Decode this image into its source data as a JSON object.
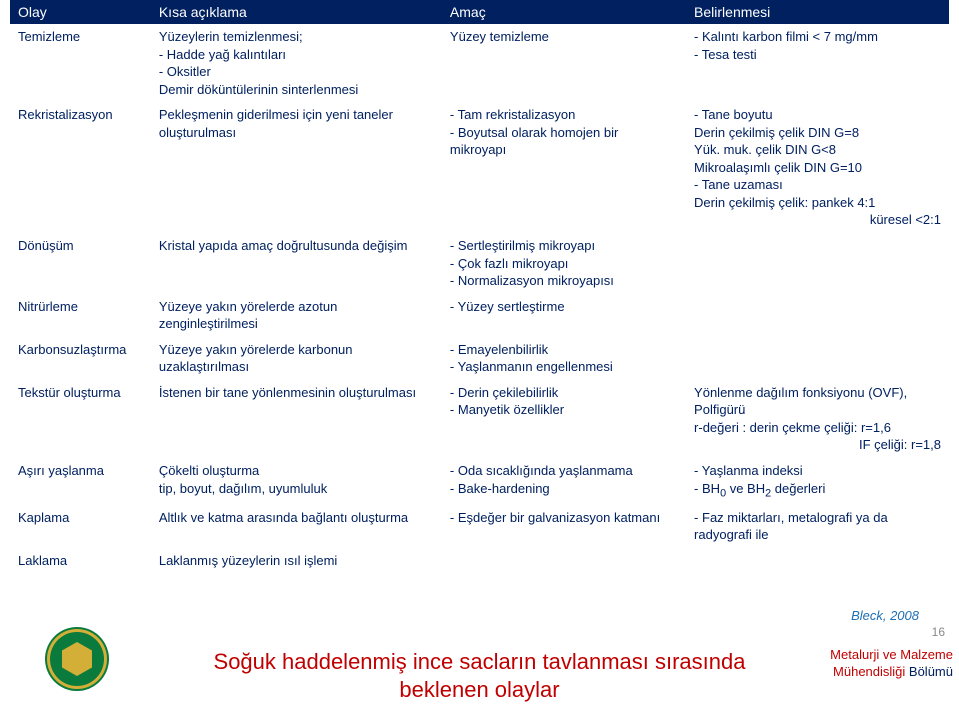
{
  "colors": {
    "header_bg": "#002060",
    "header_fg": "#ffffff",
    "body_text": "#002060",
    "title_red": "#c00000",
    "citation_blue": "#1f6fb4",
    "pagenum_gray": "#888888",
    "logo_green": "#0a7a3d",
    "logo_gold": "#d4af37"
  },
  "typography": {
    "body_size_pt": 10,
    "header_size_pt": 10.5,
    "title_size_pt": 16,
    "font_family": "Arial"
  },
  "table": {
    "headers": [
      "Olay",
      "Kısa açıklama",
      "Amaç",
      "Belirlenmesi"
    ],
    "rows": [
      {
        "c0": "Temizleme",
        "c1_lead": "Yüzeylerin temizlenmesi;",
        "c1_items": [
          "Hadde yağ kalıntıları",
          "Oksitler"
        ],
        "c1_tail": "Demir döküntülerinin sinterlenmesi",
        "c2_plain": "Yüzey temizleme",
        "c3_items": [
          "Kalıntı karbon filmi < 7 mg/mm",
          "Tesa testi"
        ]
      },
      {
        "c0": "Rekristalizasyon",
        "c1_plain": "Pekleşmenin giderilmesi için yeni taneler oluşturulması",
        "c2_items": [
          "Tam rekristalizasyon",
          "Boyutsal olarak homojen bir mikroyapı"
        ],
        "c3_mixed": [
          {
            "type": "dash",
            "text": "Tane boyutu"
          },
          {
            "type": "plain",
            "text": "Derin çekilmiş çelik DIN G=8"
          },
          {
            "type": "plain",
            "text": "Yük. muk. çelik DIN G<8"
          },
          {
            "type": "plain",
            "text": "Mikroalaşımlı çelik DIN G=10"
          },
          {
            "type": "dash",
            "text": "Tane uzaması"
          },
          {
            "type": "plain",
            "text": "Derin çekilmiş çelik: pankek 4:1"
          },
          {
            "type": "indent",
            "text": "küresel <2:1"
          }
        ]
      },
      {
        "c0": "Dönüşüm",
        "c1_plain": "Kristal yapıda amaç doğrultusunda değişim",
        "c2_items": [
          "Sertleştirilmiş mikroyapı",
          "Çok fazlı mikroyapı",
          "Normalizasyon mikroyapısı"
        ]
      },
      {
        "c0": "Nitrürleme",
        "c1_plain": "Yüzeye yakın yörelerde azotun zenginleştirilmesi",
        "c2_items": [
          "Yüzey sertleştirme"
        ]
      },
      {
        "c0": "Karbonsuzlaştırma",
        "c1_plain": "Yüzeye yakın yörelerde karbonun uzaklaştırılması",
        "c2_items": [
          "Emayelenbilirlik",
          "Yaşlanmanın engellenmesi"
        ]
      },
      {
        "c0": "Tekstür oluşturma",
        "c1_plain": "İstenen bir tane yönlenmesinin oluşturulması",
        "c2_items": [
          "Derin çekilebilirlik",
          "Manyetik özellikler"
        ],
        "c3_lines": [
          "Yönlenme dağılım fonksiyonu (OVF),",
          "Polfigürü",
          "r-değeri : derin çekme çeliği: r=1,6"
        ],
        "c3_indent": "IF çeliği: r=1,8"
      },
      {
        "c0": "Aşırı yaşlanma",
        "c1_lead": "Çökelti oluşturma",
        "c1_tail": "tip, boyut, dağılım, uyumluluk",
        "c2_items": [
          "Oda sıcaklığında yaşlanmama",
          "Bake-hardening"
        ],
        "c3_items_html": [
          "Yaşlanma indeksi",
          "BH<sub>0</sub> ve BH<sub>2</sub> değerleri"
        ]
      },
      {
        "c0": "Kaplama",
        "c1_plain": "Altlık ve katma arasında bağlantı oluşturma",
        "c2_items": [
          "Eşdeğer bir galvanizasyon katmanı"
        ],
        "c3_items": [
          "Faz miktarları, metalografi ya da radyografi ile"
        ]
      },
      {
        "c0": "Laklama",
        "c1_plain": "Laklanmış yüzeylerin ısıl işlemi"
      }
    ]
  },
  "footer": {
    "citation": "Bleck, 2008",
    "page_number": "16",
    "title_line1": "Soğuk haddelenmiş ince sacların tavlanması sırasında",
    "title_line2": "beklenen olaylar",
    "dept_red": "Metalurji ve Malzeme",
    "dept_blue1": "Mühendisliği",
    "dept_blue2": " Bölümü"
  }
}
